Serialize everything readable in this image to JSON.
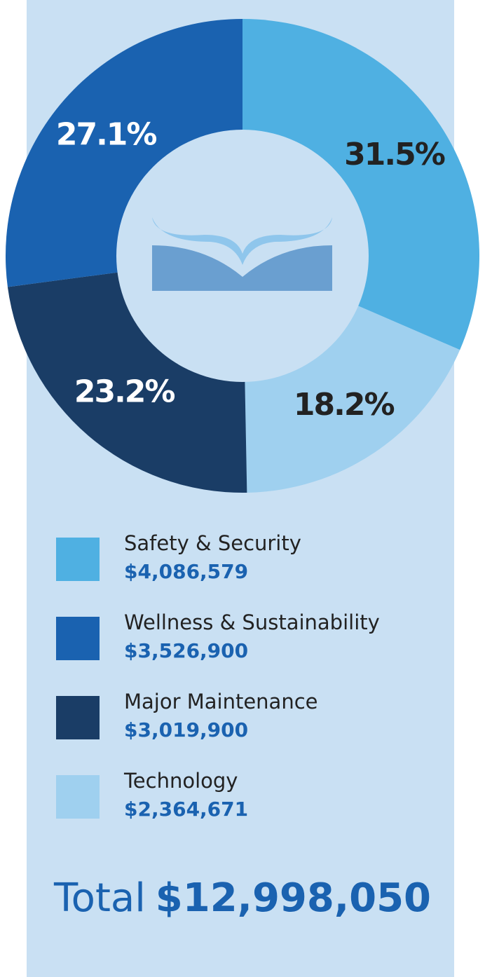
{
  "chart_data": {
    "type": "donut",
    "values": [
      31.5,
      18.2,
      23.2,
      27.1
    ],
    "value_labels": [
      "31.5%",
      "18.2%",
      "23.2%",
      "27.1%"
    ],
    "colors": [
      "#4fb0e2",
      "#9fd0ef",
      "#1a3d66",
      "#1a62b0"
    ],
    "label_colors": [
      "#222222",
      "#222222",
      "#ffffff",
      "#ffffff"
    ]
  },
  "legend": {
    "items": [
      {
        "label": "Safety & Security",
        "amount": "$4,086,579",
        "color": "#4fb0e2"
      },
      {
        "label": "Wellness & Sustainability",
        "amount": "$3,526,900",
        "color": "#1a62b0"
      },
      {
        "label": "Major Maintenance",
        "amount": "$3,019,900",
        "color": "#1a3d66"
      },
      {
        "label": "Technology",
        "amount": "$2,364,671",
        "color": "#9fd0ef"
      }
    ]
  },
  "total": {
    "label": "Total",
    "amount": "$12,998,050"
  }
}
